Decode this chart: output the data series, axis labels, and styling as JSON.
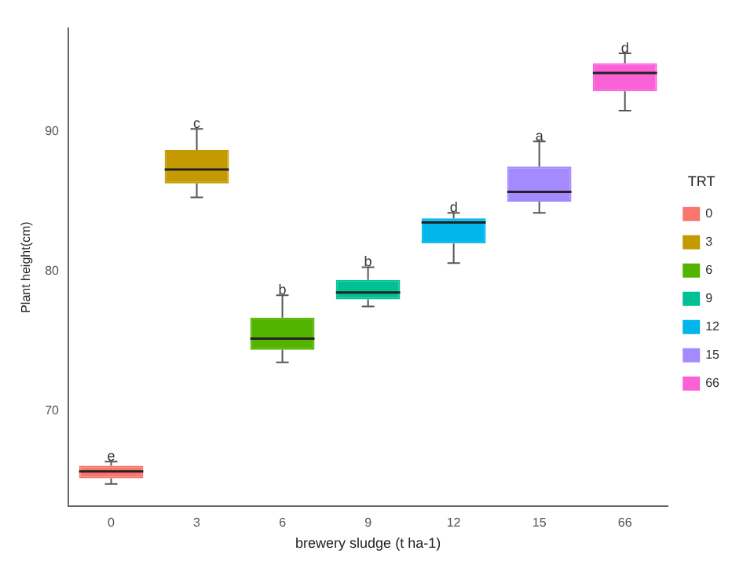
{
  "chart_data": {
    "type": "box",
    "xlabel": "brewery sludge (t ha-1)",
    "ylabel": "Plant height(cm)",
    "legend_title": "TRT",
    "legend": "right",
    "grid": false,
    "categories": [
      "0",
      "3",
      "6",
      "9",
      "12",
      "15",
      "66"
    ],
    "series": [
      {
        "name": "0",
        "color": "#f8766d",
        "boxes": [
          {
            "low": 64.8,
            "q1": 65.2,
            "median": 65.7,
            "q3": 66.1,
            "high": 66.4
          },
          null,
          null,
          null,
          null,
          null,
          null
        ]
      },
      {
        "name": "3",
        "color": "#c49a00",
        "boxes": [
          null,
          {
            "low": 85.3,
            "q1": 86.3,
            "median": 87.3,
            "q3": 88.7,
            "high": 90.2
          },
          null,
          null,
          null,
          null,
          null
        ]
      },
      {
        "name": "6",
        "color": "#53b400",
        "boxes": [
          null,
          null,
          {
            "low": 73.5,
            "q1": 74.4,
            "median": 75.2,
            "q3": 76.7,
            "high": 78.3
          },
          null,
          null,
          null,
          null
        ]
      },
      {
        "name": "9",
        "color": "#00c094",
        "boxes": [
          null,
          null,
          null,
          {
            "low": 77.5,
            "q1": 78.0,
            "median": 78.5,
            "q3": 79.4,
            "high": 80.3
          },
          null,
          null,
          null
        ]
      },
      {
        "name": "12",
        "color": "#00b6eb",
        "boxes": [
          null,
          null,
          null,
          null,
          {
            "low": 80.6,
            "q1": 82.0,
            "median": 83.5,
            "q3": 83.8,
            "high": 84.2
          },
          null,
          null
        ]
      },
      {
        "name": "15",
        "color": "#a58aff",
        "boxes": [
          null,
          null,
          null,
          null,
          null,
          {
            "low": 84.2,
            "q1": 85.0,
            "median": 85.7,
            "q3": 87.5,
            "high": 89.3
          },
          null
        ]
      },
      {
        "name": "66",
        "color": "#fb61d7",
        "boxes": [
          null,
          null,
          null,
          null,
          null,
          null,
          {
            "low": 91.5,
            "q1": 92.9,
            "median": 94.2,
            "q3": 94.9,
            "high": 95.6
          }
        ]
      }
    ],
    "ylim": [
      63.2,
      97.4
    ],
    "yticks": [
      70,
      80,
      90
    ],
    "annotations": [
      {
        "text": "e",
        "x": "0",
        "y": 66.7
      },
      {
        "text": "c",
        "x": "3",
        "y": 90.5
      },
      {
        "text": "b",
        "x": "6",
        "y": 78.6
      },
      {
        "text": "b",
        "x": "9",
        "y": 80.6
      },
      {
        "text": "d",
        "x": "12",
        "y": 84.5
      },
      {
        "text": "a",
        "x": "15",
        "y": 89.6
      },
      {
        "text": "d",
        "x": "66",
        "y": 95.9
      }
    ]
  }
}
